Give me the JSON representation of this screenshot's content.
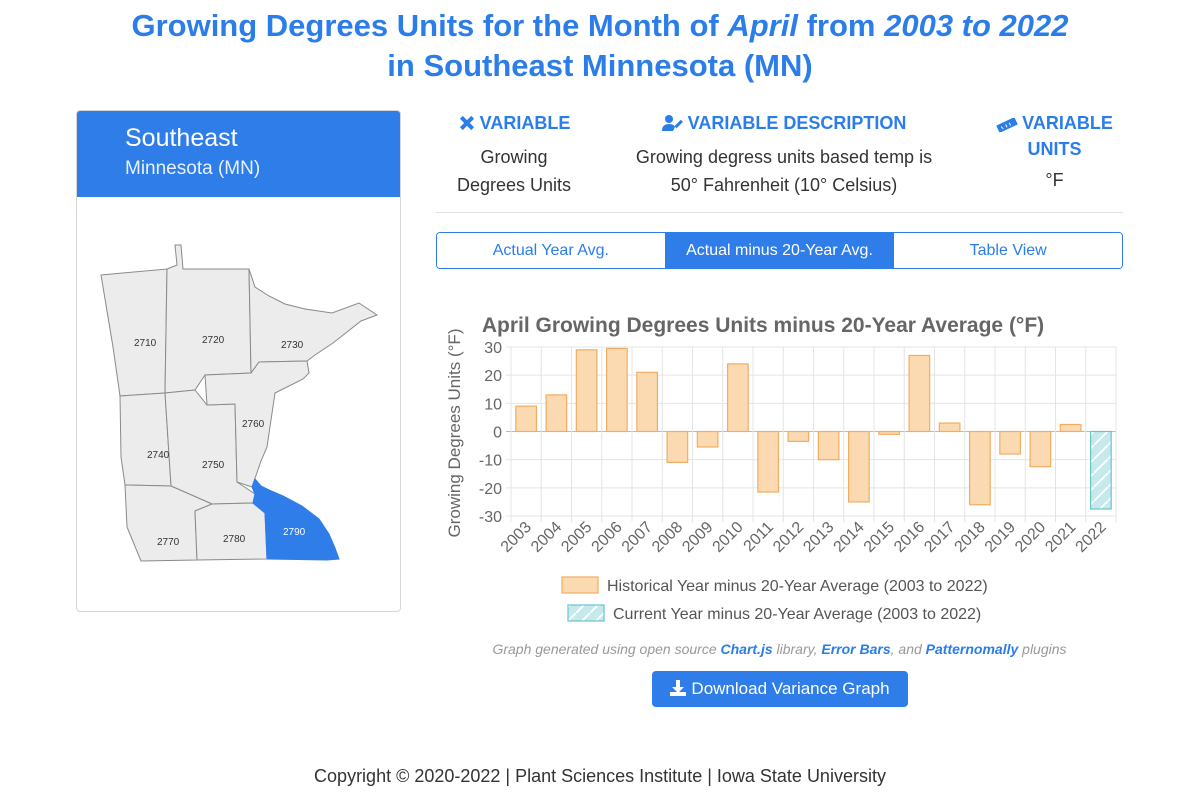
{
  "title": {
    "prefix": "Growing Degrees Units for the Month of ",
    "month": "April",
    "middle": " from ",
    "years": "2003 to 2022",
    "line2": "in Southeast Minnesota (MN)"
  },
  "region": {
    "name": "Southeast",
    "state": "Minnesota (MN)",
    "divisions": [
      "2710",
      "2720",
      "2730",
      "2740",
      "2750",
      "2760",
      "2770",
      "2780",
      "2790"
    ],
    "selected": "2790"
  },
  "info": {
    "variable_label": "VARIABLE",
    "variable_value_1": "Growing",
    "variable_value_2": "Degrees Units",
    "description_label": "VARIABLE DESCRIPTION",
    "description_1": "Growing degress units based temp is",
    "description_2": "50° Fahrenheit (10° Celsius)",
    "units_label_1": "VARIABLE",
    "units_label_2": "UNITS",
    "units_value": "°F"
  },
  "tabs": [
    {
      "label": "Actual Year Avg.",
      "active": false
    },
    {
      "label": "Actual minus 20-Year Avg.",
      "active": true
    },
    {
      "label": "Table View",
      "active": false
    }
  ],
  "chart_data": {
    "type": "bar",
    "title": "April Growing Degrees Units minus 20-Year Average (°F)",
    "ylabel": "Growing Degrees Units (°F)",
    "xlabel": "",
    "ylim": [
      -30,
      30
    ],
    "yticks": [
      30,
      20,
      10,
      0,
      -10,
      -20,
      -30
    ],
    "grid": true,
    "categories": [
      "2003",
      "2004",
      "2005",
      "2006",
      "2007",
      "2008",
      "2009",
      "2010",
      "2011",
      "2012",
      "2013",
      "2014",
      "2015",
      "2016",
      "2017",
      "2018",
      "2019",
      "2020",
      "2021",
      "2022"
    ],
    "values": [
      9,
      13,
      29,
      29.5,
      21,
      -11,
      -5.5,
      24,
      -21.5,
      -3.5,
      -10,
      -25,
      -1,
      27,
      3,
      -26,
      -8,
      -12.5,
      2.5,
      -27.5
    ],
    "series": [
      {
        "name": "Historical Year minus 20-Year Average (2003 to 2022)",
        "fill": "#fbd9b1",
        "stroke": "#f2ad62"
      },
      {
        "name": "Current Year minus 20-Year Average (2003 to 2022)",
        "fill": "#c6e9ec",
        "stroke": "#68c3cb"
      }
    ],
    "current_index": 19,
    "legend_position": "bottom"
  },
  "credit": {
    "prefix": "Graph generated using open source ",
    "lib1": "Chart.js",
    "mid1": " library, ",
    "lib2": "Error Bars",
    "mid2": ", and ",
    "lib3": "Patternomally",
    "suffix": " plugins"
  },
  "download_label": "Download Variance Graph",
  "footer": "Copyright © 2020-2022 | Plant Sciences Institute | Iowa State University",
  "colors": {
    "accent": "#2f7de9",
    "map_fill": "#ececec",
    "map_stroke": "#8a8a8a"
  },
  "icons": {
    "variable": "ruler-pencil-icon",
    "description": "user-edit-icon",
    "units": "ruler-icon",
    "download": "download-icon"
  }
}
